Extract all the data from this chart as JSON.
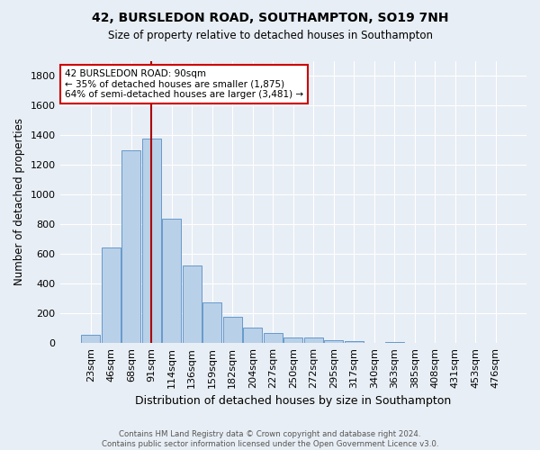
{
  "title1": "42, BURSLEDON ROAD, SOUTHAMPTON, SO19 7NH",
  "title2": "Size of property relative to detached houses in Southampton",
  "xlabel": "Distribution of detached houses by size in Southampton",
  "ylabel": "Number of detached properties",
  "bar_labels": [
    "23sqm",
    "46sqm",
    "68sqm",
    "91sqm",
    "114sqm",
    "136sqm",
    "159sqm",
    "182sqm",
    "204sqm",
    "227sqm",
    "250sqm",
    "272sqm",
    "295sqm",
    "317sqm",
    "340sqm",
    "363sqm",
    "385sqm",
    "408sqm",
    "431sqm",
    "453sqm",
    "476sqm"
  ],
  "bar_values": [
    55,
    645,
    1300,
    1375,
    840,
    525,
    275,
    175,
    105,
    65,
    35,
    35,
    22,
    12,
    0,
    10,
    0,
    0,
    0,
    0,
    0
  ],
  "bar_color": "#b8d0e8",
  "bar_edge_color": "#6699cc",
  "bg_color": "#e8eef5",
  "grid_color": "#ffffff",
  "marker_color": "#aa0000",
  "annotation_text": "42 BURSLEDON ROAD: 90sqm\n← 35% of detached houses are smaller (1,875)\n64% of semi-detached houses are larger (3,481) →",
  "annotation_box_color": "#ffffff",
  "annotation_box_edge": "#cc0000",
  "ylim": [
    0,
    1900
  ],
  "yticks": [
    0,
    200,
    400,
    600,
    800,
    1000,
    1200,
    1400,
    1600,
    1800
  ],
  "footer": "Contains HM Land Registry data © Crown copyright and database right 2024.\nContains public sector information licensed under the Open Government Licence v3.0."
}
